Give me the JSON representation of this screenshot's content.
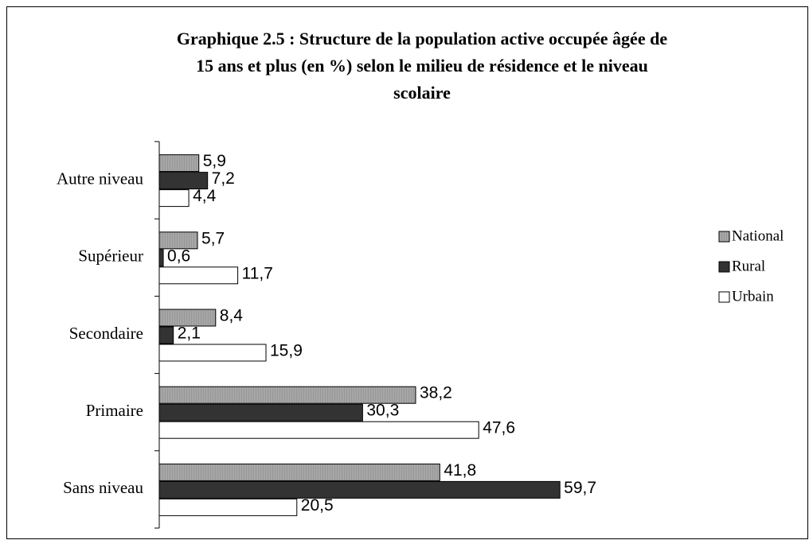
{
  "chart_data": {
    "type": "hbar",
    "title": [
      "Graphique 2.5 : Structure de la population active occupée âgée de",
      "15 ans et plus (en %) selon le milieu de résidence et le niveau",
      "scolaire"
    ],
    "categories": [
      "Autre niveau",
      "Supérieur",
      "Secondaire",
      "Primaire",
      "Sans niveau"
    ],
    "series": [
      {
        "name": "National",
        "color": "#a6a6a6",
        "values": [
          5.9,
          5.7,
          8.4,
          38.2,
          41.8
        ],
        "value_labels": [
          "5,9",
          "5,7",
          "8,4",
          "38,2",
          "41,8"
        ]
      },
      {
        "name": "Rural",
        "color": "#333333",
        "values": [
          7.2,
          0.6,
          2.1,
          30.3,
          59.7
        ],
        "value_labels": [
          "7,2",
          "0,6",
          "2,1",
          "30,3",
          "59,7"
        ]
      },
      {
        "name": "Urbain",
        "color": "#ffffff",
        "values": [
          4.4,
          11.7,
          15.9,
          47.6,
          20.5
        ],
        "value_labels": [
          "4,4",
          "11,7",
          "15,9",
          "47,6",
          "20,5"
        ]
      }
    ],
    "xlim": [
      0,
      70
    ],
    "legend": "right"
  }
}
